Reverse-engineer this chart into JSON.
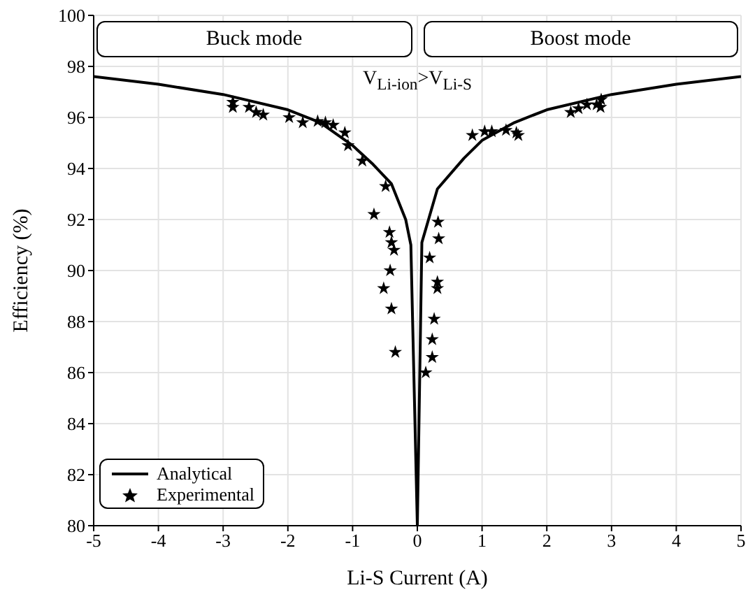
{
  "chart_data": {
    "type": "line",
    "xlabel": "Li-S Current (A)",
    "ylabel": "Efficiency (%)",
    "xlim": [
      -5,
      5
    ],
    "xticks": [
      -5,
      -4,
      -3,
      -2,
      -1,
      0,
      1,
      2,
      3,
      4,
      5
    ],
    "ylim": [
      80,
      100
    ],
    "yticks": [
      80,
      82,
      84,
      86,
      88,
      90,
      92,
      94,
      96,
      98,
      100
    ],
    "grid": true,
    "legend": "bottom left",
    "annotations": [
      "Buck mode",
      "Boost mode",
      "V$_{Li-ion}$>V$_{Li-S}$"
    ],
    "series": [
      {
        "name": "Analytical",
        "type": "line",
        "color": "#000000",
        "marker": "none",
        "line_style": "solid",
        "x": [
          -5,
          -4,
          -3,
          -2,
          -1.5,
          -1,
          -0.7,
          -0.4,
          -0.18,
          -0.1,
          0,
          0.07,
          0.31,
          0.72,
          1,
          1.5,
          2,
          3,
          4,
          5
        ],
        "values": [
          97.6,
          97.3,
          96.9,
          96.3,
          95.8,
          94.9,
          94.2,
          93.4,
          92.0,
          91.0,
          80,
          91.1,
          93.2,
          94.4,
          95.1,
          95.8,
          96.3,
          96.9,
          97.3,
          97.6
        ]
      },
      {
        "name": "Experimental",
        "type": "scatter",
        "color": "#000000",
        "marker": "star",
        "x": [
          -2.85,
          -2.85,
          -2.6,
          -2.49,
          -2.38,
          -1.98,
          -1.77,
          -1.54,
          -1.42,
          -1.3,
          -1.12,
          -1.07,
          -0.85,
          -0.67,
          -0.49,
          -0.43,
          -0.4,
          -0.36,
          -0.42,
          -0.52,
          -0.4,
          -0.34,
          0.19,
          0.32,
          0.33,
          0.31,
          0.31,
          0.26,
          0.23,
          0.23,
          0.13,
          0.85,
          1.04,
          1.15,
          1.37,
          1.53,
          1.56,
          2.37,
          2.49,
          2.62,
          2.77,
          2.83,
          2.84
        ],
        "values": [
          96.4,
          96.6,
          96.4,
          96.2,
          96.1,
          96.0,
          95.8,
          95.85,
          95.8,
          95.7,
          95.4,
          94.9,
          94.3,
          92.2,
          93.3,
          91.5,
          91.1,
          90.8,
          90.0,
          89.3,
          88.5,
          86.8,
          90.5,
          91.9,
          91.25,
          89.55,
          89.3,
          88.1,
          87.3,
          86.6,
          86.0,
          95.3,
          95.45,
          95.45,
          95.5,
          95.4,
          95.3,
          96.2,
          96.35,
          96.5,
          96.5,
          96.4,
          96.7
        ]
      }
    ]
  }
}
